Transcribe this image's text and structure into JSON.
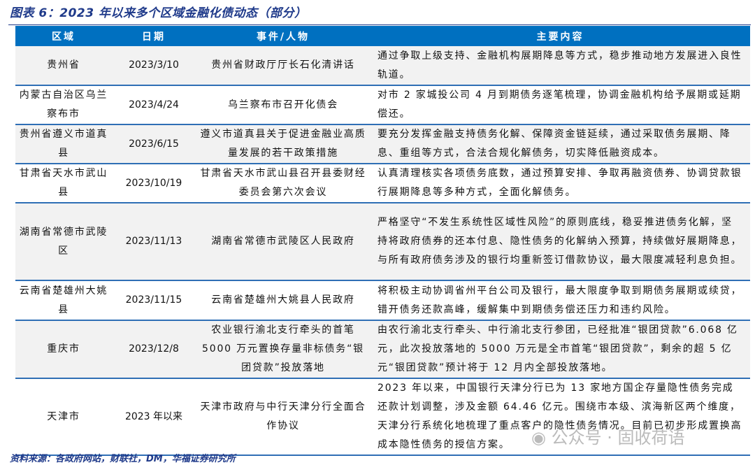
{
  "title": "图表 6：2023 年以来多个区域金融化债动态（部分）",
  "headers": [
    "区域",
    "日期",
    "事件/人物",
    "主要内容"
  ],
  "rows": [
    {
      "region": "贵州省",
      "date": "2023/3/10",
      "event": "贵州省财政厅厅长石化清讲话",
      "content": "通过争取上级支持、金融机构展期降息等方式，稳步推动地方发展进入良性轨道。"
    },
    {
      "region": "内蒙古自治区乌兰察布市",
      "date": "2023/4/24",
      "event": "乌兰察布市召开化债会",
      "content": "对市 2 家城投公司 4 月到期债务逐笔梳理，协调金融机构给予展期或延期偿还。"
    },
    {
      "region": "贵州省遵义市道真县",
      "date": "2023/6/15",
      "event": "遵义市道真县关于促进金融业高质量发展的若干政策措施",
      "content": "要充分发挥金融支持债务化解、保障资金链延续，通过采取债务展期、降息、重组等方式，合法合规化解债务，切实降低融资成本。"
    },
    {
      "region": "甘肃省天水市武山县",
      "date": "2023/10/19",
      "event": "甘肃省天水市武山县召开县委财经委员会第六次会议",
      "content": "认真清理核实各项债务底数，通过预算安排、争取再融资债券、协调贷款银行展期降息等多种方式，全面化解债务。"
    },
    {
      "region": "湖南省常德市武陵区",
      "date": "2023/11/13",
      "event": "湖南省常德市武陵区人民政府",
      "content": "严格坚守“不发生系统性区域性风险”的原则底线，稳妥推进债务化解，坚持将政府债券的还本付息、隐性债务的化解纳入预算，持续做好展期降息，与所有政府债务涉及的银行均重新签订借款协议，最大限度减轻利息负担。"
    },
    {
      "region": "云南省楚雄州大姚县",
      "date": "2023/11/15",
      "event": "云南省楚雄州大姚县人民政府",
      "content": "将积极主动协调省州平台公司及银行，最大限度争取到期债务展期或续贷，错开债务还款高峰，缓解集中到期债务偿还压力和违约风险。"
    },
    {
      "region": "重庆市",
      "date": "2023/12/8",
      "event": "农业银行渝北支行牵头的首笔5000 万元置换存量非标债务“银团贷款”投放落地",
      "content": "由农行渝北支行牵头、中行渝北支行参团，已经批准“银团贷款”6.068 亿元，此次投放落地的 5000 万元是全市首笔“银团贷款”，剩余的超 5 亿元“银团贷款”预计将于 12 月内全部投放落地。"
    },
    {
      "region": "天津市",
      "date": "2023 年以来",
      "event": "天津市政府与中行天津分行全面合作协议",
      "content": "2023 年以来，中国银行天津分行已为 13 家地方国企存量隐性债务完成还款计划调整，涉及金额 64.46 亿元。围绕市本级、滨海新区两个维度，天津分行系统化地梳理了重点客户的隐性债务情况。目前已初步形成置换高成本隐性债务的授信方案。"
    }
  ],
  "source": "资料来源：各政府网站，财联社，DM，华福证券研究所",
  "watermark": "公众号 · 固收荷语"
}
